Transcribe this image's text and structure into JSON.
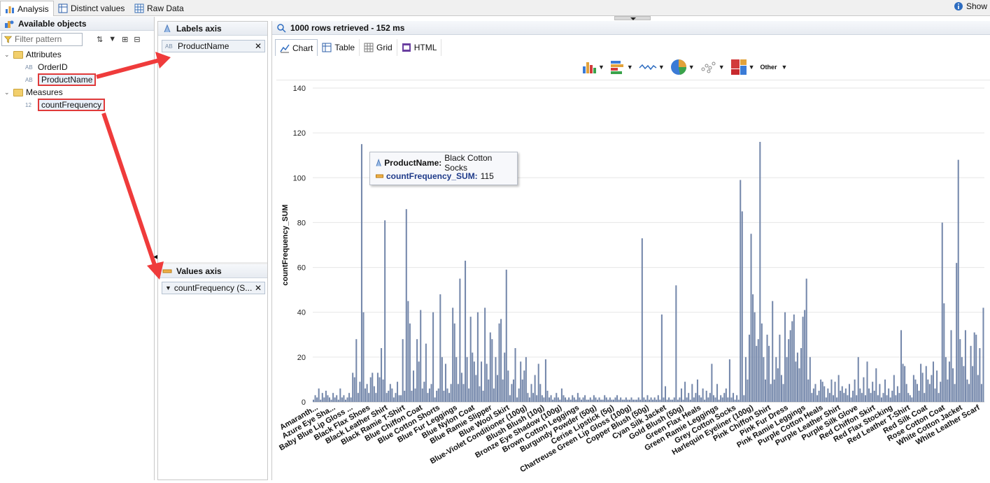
{
  "top_tabs": [
    {
      "label": "Analysis",
      "icon": "bar-chart-icon"
    },
    {
      "label": "Distinct values",
      "icon": "table-icon"
    },
    {
      "label": "Raw Data",
      "icon": "grid-icon"
    }
  ],
  "show_label": "Show",
  "left_panel": {
    "title": "Available objects",
    "filter_placeholder": "Filter pattern",
    "tree": [
      {
        "label": "Attributes",
        "type": "folder"
      },
      {
        "label": "OrderID",
        "type": "AB"
      },
      {
        "label": "ProductName",
        "type": "AB"
      },
      {
        "label": "Measures",
        "type": "folder"
      },
      {
        "label": "countFrequency",
        "type": "12"
      }
    ]
  },
  "labels_axis": {
    "title": "Labels axis",
    "field": "ProductName"
  },
  "values_axis": {
    "title": "Values axis",
    "field": "countFrequency (S..."
  },
  "result_header": "1000 rows retrieved - 152 ms",
  "view_tabs": [
    "Chart",
    "Table",
    "Grid",
    "HTML"
  ],
  "toolbar": {
    "other_label": "Other"
  },
  "tooltip": {
    "name_label": "ProductName:",
    "name_value": "Black Cotton Socks",
    "measure_label": "countFrequency_SUM:",
    "measure_value": "115"
  },
  "colors": {
    "bar": "#7588ab",
    "accent_red": "#e03a3a"
  },
  "chart_data": {
    "type": "bar",
    "ylabel": "countFrequency_SUM",
    "xlabel": "",
    "ylim": [
      0,
      140
    ],
    "y_ticks": [
      0,
      20,
      40,
      60,
      80,
      100,
      120,
      140
    ],
    "grid": true,
    "x_tick_labels": [
      "Amaranth...",
      "Azure Eye Sha...",
      "Baby Blue Lip Gloss ...",
      "Black Flax Shoes",
      "Black Leather Shirt",
      "Black Ramie T-Shirt",
      "Blue Chiffon Coat",
      "Blue Cotton Shorts",
      "Blue Fur Leggings",
      "Blue Nylon Coat",
      "Blue Ramie Slipper",
      "Blue Wool Skirt",
      "Blue-Violet Conditioner (100g)",
      "Blush Blush (10g)",
      "Bronze Eye Shadow (100g)",
      "Brown Cotton Leggings",
      "Burgundy Powder (50g)",
      "Cerise Lipstick (5g)",
      "Chartreuse Green Lip Gloss (100g)",
      "Copper Blush (50g)",
      "Cyan Silk Jacket",
      "Gold Blush (50g)",
      "Green Flax Heals",
      "Green Ramie Leggings",
      "Grey Cotton Socks",
      "Harlequin Eyeliner (100g)",
      "Pink Chiffon Shirt",
      "Pink Fur Dress",
      "Pink Ramie Leggings",
      "Purple Cotton Heals",
      "Purple Leather Shirt",
      "Purple Silk Glove",
      "Red Chiffon Skirt",
      "Red Flax Stocking",
      "Red Leather T-Shirt",
      "Red Silk Coat",
      "Rose Cotton Coat",
      "White Cotton Jacket",
      "White Leather Scarf"
    ],
    "values": [
      1,
      3,
      2,
      6,
      1,
      4,
      2,
      5,
      3,
      2,
      1,
      4,
      2,
      3,
      1,
      6,
      2,
      3,
      1,
      2,
      4,
      2,
      13,
      11,
      28,
      4,
      9,
      115,
      40,
      6,
      8,
      4,
      11,
      13,
      7,
      4,
      13,
      11,
      24,
      10,
      81,
      4,
      5,
      8,
      6,
      2,
      4,
      9,
      3,
      3,
      28,
      5,
      86,
      45,
      35,
      5,
      14,
      6,
      28,
      18,
      41,
      6,
      9,
      26,
      4,
      6,
      8,
      40,
      2,
      5,
      6,
      48,
      20,
      5,
      17,
      6,
      4,
      8,
      42,
      35,
      20,
      8,
      55,
      13,
      8,
      63,
      20,
      6,
      38,
      22,
      18,
      12,
      40,
      7,
      18,
      5,
      42,
      17,
      10,
      31,
      28,
      6,
      20,
      12,
      35,
      37,
      10,
      22,
      59,
      14,
      3,
      8,
      10,
      24,
      2,
      6,
      18,
      10,
      14,
      20,
      4,
      2,
      8,
      4,
      12,
      3,
      17,
      8,
      3,
      2,
      19,
      5,
      2,
      3,
      1,
      2,
      4,
      2,
      1,
      6,
      3,
      2,
      1,
      2,
      1,
      3,
      2,
      1,
      4,
      2,
      1,
      2,
      3,
      1,
      1,
      2,
      1,
      3,
      2,
      1,
      2,
      1,
      1,
      3,
      2,
      1,
      2,
      1,
      1,
      2,
      3,
      1,
      2,
      1,
      1,
      2,
      1,
      1,
      2,
      1,
      1,
      1,
      2,
      1,
      73,
      2,
      1,
      3,
      1,
      2,
      1,
      2,
      1,
      3,
      1,
      39,
      2,
      7,
      1,
      2,
      1,
      1,
      2,
      52,
      1,
      2,
      6,
      1,
      9,
      2,
      4,
      1,
      8,
      2,
      4,
      10,
      3,
      2,
      6,
      1,
      5,
      2,
      4,
      17,
      3,
      2,
      8,
      1,
      3,
      2,
      4,
      6,
      2,
      19,
      2,
      4,
      1,
      3,
      1,
      99,
      85,
      3,
      20,
      10,
      30,
      75,
      48,
      40,
      25,
      28,
      116,
      35,
      20,
      10,
      30,
      25,
      8,
      45,
      10,
      20,
      15,
      30,
      12,
      8,
      40,
      20,
      28,
      32,
      36,
      39,
      18,
      22,
      15,
      24,
      38,
      41,
      55,
      10,
      20,
      4,
      6,
      8,
      3,
      5,
      10,
      9,
      7,
      2,
      6,
      4,
      10,
      3,
      9,
      2,
      12,
      5,
      7,
      4,
      6,
      3,
      8,
      2,
      5,
      10,
      3,
      20,
      6,
      4,
      11,
      3,
      18,
      6,
      4,
      9,
      5,
      15,
      3,
      8,
      2,
      4,
      10,
      3,
      6,
      2,
      5,
      12,
      3,
      7,
      4,
      32,
      17,
      16,
      8,
      4,
      3,
      2,
      12,
      10,
      8,
      5,
      17,
      13,
      4,
      16,
      10,
      8,
      12,
      18,
      6,
      14,
      4,
      9,
      80,
      44,
      20,
      10,
      18,
      32,
      15,
      8,
      62,
      108,
      28,
      20,
      16,
      32,
      10,
      8,
      25,
      16,
      31,
      30,
      12,
      24,
      8,
      42
    ]
  }
}
